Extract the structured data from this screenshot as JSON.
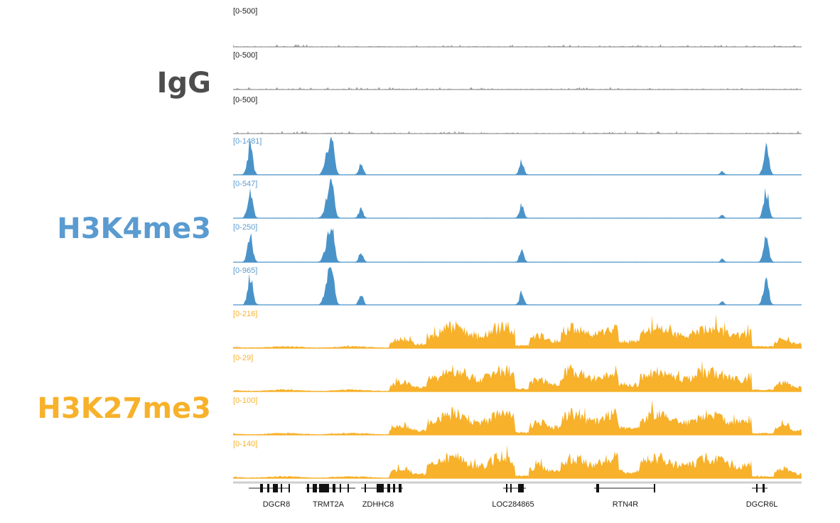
{
  "groups": [
    {
      "key": "igg",
      "label": "IgG",
      "color": "#4d4d4d",
      "tracks": [
        {
          "range": "[0-500]"
        },
        {
          "range": "[0-500]"
        },
        {
          "range": "[0-500]"
        }
      ]
    },
    {
      "key": "h3k4me3",
      "label": "H3K4me3",
      "color": "#5a9bd0",
      "tracks": [
        {
          "range": "[0-1481]"
        },
        {
          "range": "[0-547]"
        },
        {
          "range": "[0-250]"
        },
        {
          "range": "[0-965]"
        }
      ]
    },
    {
      "key": "h3k27me3",
      "label": "H3K27me3",
      "color": "#f7b12a",
      "tracks": [
        {
          "range": "[0-216]"
        },
        {
          "range": "[0-29]"
        },
        {
          "range": "[0-100]"
        },
        {
          "range": "[0-140]"
        }
      ]
    }
  ],
  "genes": [
    "DGCR8",
    "TRMT2A",
    "ZDHHC8",
    "LOC284865",
    "RTN4R",
    "DGCR6L"
  ]
}
